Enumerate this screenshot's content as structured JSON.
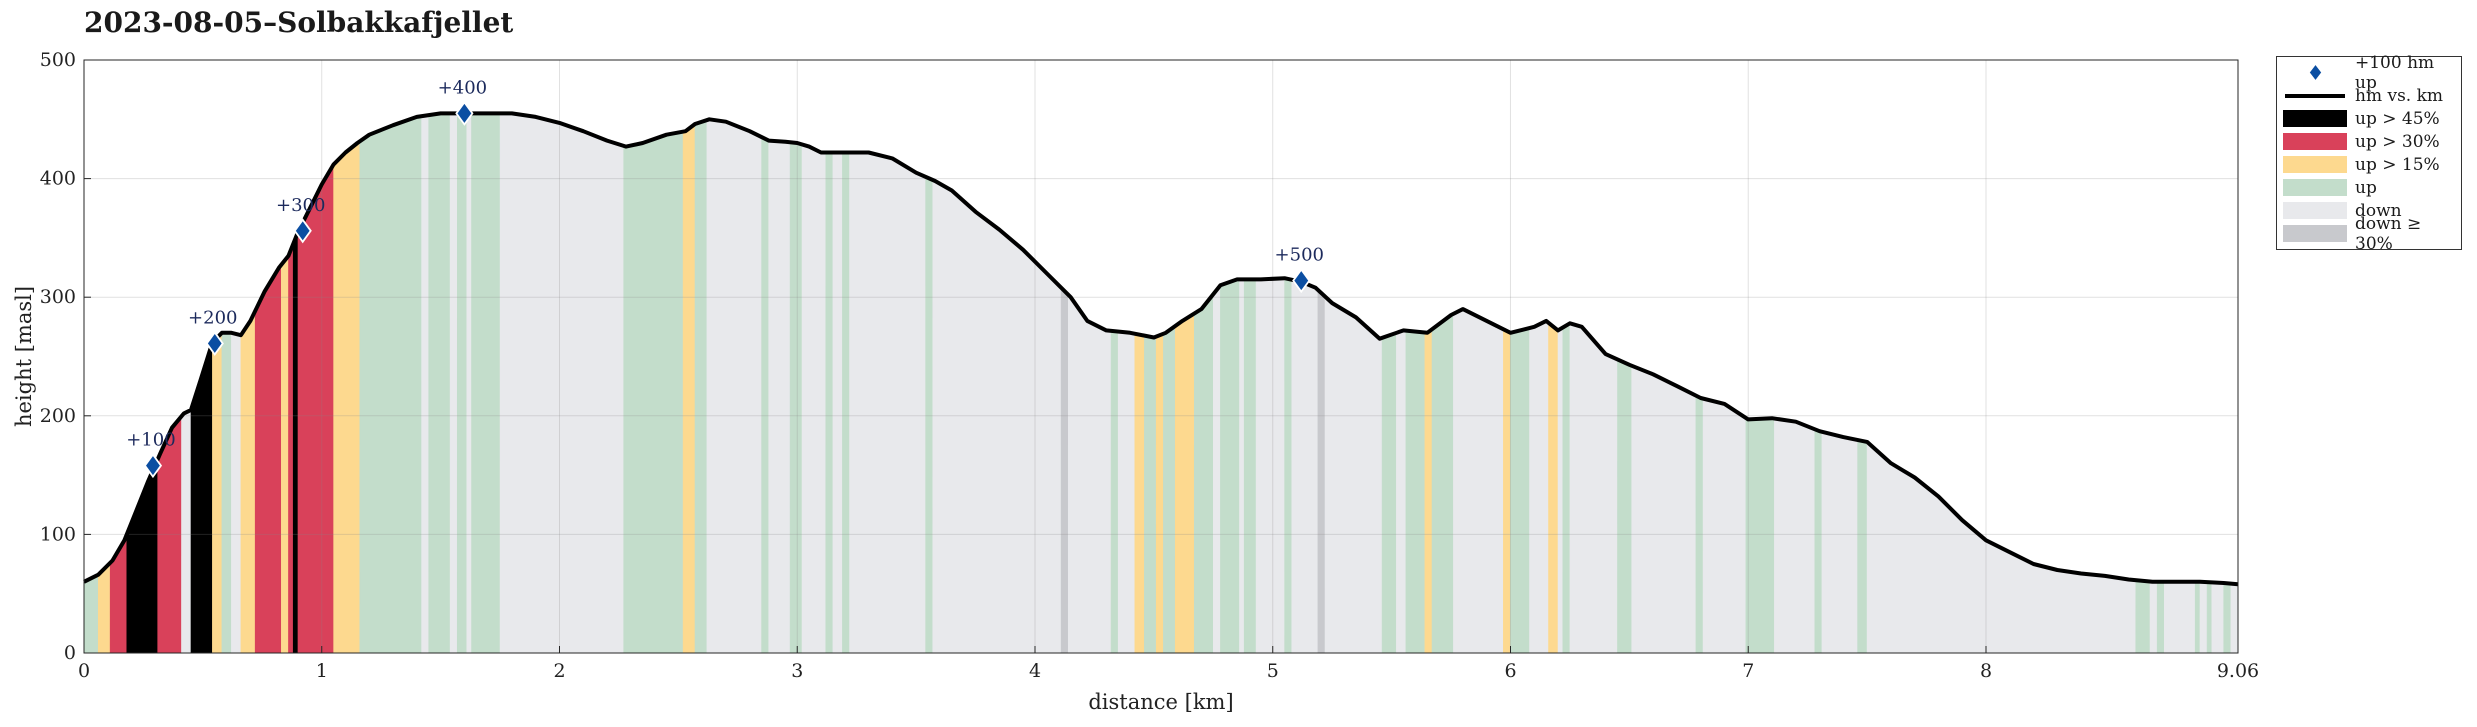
{
  "title": "2023-08-05–Solbakkafjellet",
  "colors": {
    "up_steep": "#000000",
    "up_30": "#d9415a",
    "up_15": "#fdd98f",
    "up": "#c3ddcb",
    "down": "#e8e9ec",
    "down_steep": "#c8c9cd",
    "line": "#000000",
    "marker": "#0b4ea2"
  },
  "legend": [
    {
      "key": "marker",
      "label": "+100 hm up",
      "symbol": "diamond"
    },
    {
      "key": "line",
      "label": "hm vs. km",
      "symbol": "line"
    },
    {
      "key": "up_steep",
      "label": "up > 45%",
      "symbol": "box"
    },
    {
      "key": "up_30",
      "label": "up > 30%",
      "symbol": "box"
    },
    {
      "key": "up_15",
      "label": "up > 15%",
      "symbol": "box"
    },
    {
      "key": "up",
      "label": "up",
      "symbol": "box"
    },
    {
      "key": "down",
      "label": "down",
      "symbol": "box"
    },
    {
      "key": "down_steep",
      "label": "down ≥ 30%",
      "symbol": "box"
    }
  ],
  "chart_data": {
    "type": "area",
    "title": "2023-08-05–Solbakkafjellet",
    "xlabel": "distance [km]",
    "ylabel": "height [masl]",
    "xlim": [
      0,
      9.06
    ],
    "ylim": [
      0,
      500
    ],
    "xticks": [
      "0",
      "1",
      "2",
      "3",
      "4",
      "5",
      "6",
      "7",
      "8",
      "9.06"
    ],
    "xtick_values": [
      0,
      1,
      2,
      3,
      4,
      5,
      6,
      7,
      8,
      9.06
    ],
    "yticks": [
      0,
      100,
      200,
      300,
      400,
      500
    ],
    "grid": true,
    "legend_position": "outside-top-right",
    "profile": [
      [
        0,
        60
      ],
      [
        0.06,
        66
      ],
      [
        0.12,
        78
      ],
      [
        0.17,
        95
      ],
      [
        0.22,
        120
      ],
      [
        0.27,
        145
      ],
      [
        0.32,
        168
      ],
      [
        0.37,
        190
      ],
      [
        0.42,
        202
      ],
      [
        0.45,
        205
      ],
      [
        0.49,
        230
      ],
      [
        0.54,
        262
      ],
      [
        0.58,
        270
      ],
      [
        0.62,
        270
      ],
      [
        0.66,
        268
      ],
      [
        0.7,
        280
      ],
      [
        0.76,
        305
      ],
      [
        0.82,
        325
      ],
      [
        0.86,
        335
      ],
      [
        0.9,
        355
      ],
      [
        0.95,
        375
      ],
      [
        1.0,
        395
      ],
      [
        1.05,
        412
      ],
      [
        1.1,
        422
      ],
      [
        1.15,
        430
      ],
      [
        1.2,
        437
      ],
      [
        1.3,
        445
      ],
      [
        1.4,
        452
      ],
      [
        1.5,
        455
      ],
      [
        1.6,
        455
      ],
      [
        1.7,
        455
      ],
      [
        1.8,
        455
      ],
      [
        1.9,
        452
      ],
      [
        2.0,
        447
      ],
      [
        2.1,
        440
      ],
      [
        2.2,
        432
      ],
      [
        2.28,
        427
      ],
      [
        2.35,
        430
      ],
      [
        2.45,
        437
      ],
      [
        2.53,
        440
      ],
      [
        2.57,
        446
      ],
      [
        2.63,
        450
      ],
      [
        2.7,
        448
      ],
      [
        2.8,
        440
      ],
      [
        2.88,
        432
      ],
      [
        2.95,
        431
      ],
      [
        3.0,
        430
      ],
      [
        3.05,
        427
      ],
      [
        3.1,
        422
      ],
      [
        3.2,
        422
      ],
      [
        3.3,
        422
      ],
      [
        3.4,
        417
      ],
      [
        3.5,
        405
      ],
      [
        3.58,
        398
      ],
      [
        3.65,
        390
      ],
      [
        3.75,
        372
      ],
      [
        3.85,
        357
      ],
      [
        3.95,
        340
      ],
      [
        4.05,
        320
      ],
      [
        4.15,
        300
      ],
      [
        4.22,
        280
      ],
      [
        4.3,
        272
      ],
      [
        4.4,
        270
      ],
      [
        4.5,
        266
      ],
      [
        4.55,
        270
      ],
      [
        4.62,
        280
      ],
      [
        4.7,
        290
      ],
      [
        4.78,
        310
      ],
      [
        4.85,
        315
      ],
      [
        4.95,
        315
      ],
      [
        5.05,
        316
      ],
      [
        5.12,
        313
      ],
      [
        5.18,
        308
      ],
      [
        5.25,
        295
      ],
      [
        5.35,
        283
      ],
      [
        5.45,
        265
      ],
      [
        5.55,
        272
      ],
      [
        5.65,
        270
      ],
      [
        5.75,
        285
      ],
      [
        5.8,
        290
      ],
      [
        5.9,
        280
      ],
      [
        6.0,
        270
      ],
      [
        6.1,
        275
      ],
      [
        6.15,
        280
      ],
      [
        6.2,
        272
      ],
      [
        6.25,
        278
      ],
      [
        6.3,
        275
      ],
      [
        6.4,
        252
      ],
      [
        6.5,
        243
      ],
      [
        6.6,
        235
      ],
      [
        6.7,
        225
      ],
      [
        6.8,
        215
      ],
      [
        6.9,
        210
      ],
      [
        7.0,
        197
      ],
      [
        7.1,
        198
      ],
      [
        7.2,
        195
      ],
      [
        7.3,
        187
      ],
      [
        7.4,
        182
      ],
      [
        7.5,
        178
      ],
      [
        7.6,
        160
      ],
      [
        7.7,
        148
      ],
      [
        7.8,
        132
      ],
      [
        7.9,
        112
      ],
      [
        8.0,
        95
      ],
      [
        8.1,
        85
      ],
      [
        8.2,
        75
      ],
      [
        8.3,
        70
      ],
      [
        8.4,
        67
      ],
      [
        8.5,
        65
      ],
      [
        8.6,
        62
      ],
      [
        8.7,
        60
      ],
      [
        8.8,
        60
      ],
      [
        8.9,
        60
      ],
      [
        9.0,
        59
      ],
      [
        9.06,
        58
      ]
    ],
    "segments": [
      [
        0.0,
        0.06,
        "up"
      ],
      [
        0.06,
        0.11,
        "up_15"
      ],
      [
        0.11,
        0.18,
        "up_30"
      ],
      [
        0.18,
        0.31,
        "up_steep"
      ],
      [
        0.31,
        0.41,
        "up_30"
      ],
      [
        0.41,
        0.45,
        "down"
      ],
      [
        0.45,
        0.54,
        "up_steep"
      ],
      [
        0.54,
        0.58,
        "up_15"
      ],
      [
        0.58,
        0.62,
        "up"
      ],
      [
        0.62,
        0.66,
        "down"
      ],
      [
        0.66,
        0.72,
        "up_15"
      ],
      [
        0.72,
        0.83,
        "up_30"
      ],
      [
        0.83,
        0.86,
        "up_15"
      ],
      [
        0.86,
        0.88,
        "up_30"
      ],
      [
        0.88,
        0.9,
        "up_steep"
      ],
      [
        0.9,
        1.05,
        "up_30"
      ],
      [
        1.05,
        1.16,
        "up_15"
      ],
      [
        1.16,
        1.42,
        "up"
      ],
      [
        1.42,
        1.45,
        "down"
      ],
      [
        1.45,
        1.54,
        "up"
      ],
      [
        1.54,
        1.57,
        "down"
      ],
      [
        1.57,
        1.61,
        "up"
      ],
      [
        1.61,
        1.63,
        "down"
      ],
      [
        1.63,
        1.75,
        "up"
      ],
      [
        1.75,
        2.27,
        "down"
      ],
      [
        2.27,
        2.52,
        "up"
      ],
      [
        2.52,
        2.57,
        "up_15"
      ],
      [
        2.57,
        2.62,
        "up"
      ],
      [
        2.62,
        2.85,
        "down"
      ],
      [
        2.85,
        2.88,
        "up"
      ],
      [
        2.88,
        2.97,
        "down"
      ],
      [
        2.97,
        3.02,
        "up"
      ],
      [
        3.02,
        3.12,
        "down"
      ],
      [
        3.12,
        3.15,
        "up"
      ],
      [
        3.15,
        3.19,
        "down"
      ],
      [
        3.19,
        3.22,
        "up"
      ],
      [
        3.22,
        3.54,
        "down"
      ],
      [
        3.54,
        3.57,
        "up"
      ],
      [
        3.57,
        4.11,
        "down"
      ],
      [
        4.11,
        4.14,
        "down_steep"
      ],
      [
        4.14,
        4.32,
        "down"
      ],
      [
        4.32,
        4.35,
        "up"
      ],
      [
        4.35,
        4.42,
        "down"
      ],
      [
        4.42,
        4.46,
        "up_15"
      ],
      [
        4.46,
        4.51,
        "up"
      ],
      [
        4.51,
        4.54,
        "up_15"
      ],
      [
        4.54,
        4.59,
        "up"
      ],
      [
        4.59,
        4.67,
        "up_15"
      ],
      [
        4.67,
        4.75,
        "up"
      ],
      [
        4.75,
        4.78,
        "down"
      ],
      [
        4.78,
        4.86,
        "up"
      ],
      [
        4.86,
        4.88,
        "down"
      ],
      [
        4.88,
        4.93,
        "up"
      ],
      [
        4.93,
        5.05,
        "down"
      ],
      [
        5.05,
        5.08,
        "up"
      ],
      [
        5.08,
        5.19,
        "down"
      ],
      [
        5.19,
        5.22,
        "down_steep"
      ],
      [
        5.22,
        5.46,
        "down"
      ],
      [
        5.46,
        5.52,
        "up"
      ],
      [
        5.52,
        5.56,
        "down"
      ],
      [
        5.56,
        5.64,
        "up"
      ],
      [
        5.64,
        5.67,
        "up_15"
      ],
      [
        5.67,
        5.76,
        "up"
      ],
      [
        5.76,
        5.97,
        "down"
      ],
      [
        5.97,
        6.0,
        "up_15"
      ],
      [
        6.0,
        6.08,
        "up"
      ],
      [
        6.08,
        6.16,
        "down"
      ],
      [
        6.16,
        6.2,
        "up_15"
      ],
      [
        6.2,
        6.22,
        "down"
      ],
      [
        6.22,
        6.25,
        "up"
      ],
      [
        6.25,
        6.45,
        "down"
      ],
      [
        6.45,
        6.51,
        "up"
      ],
      [
        6.51,
        6.78,
        "down"
      ],
      [
        6.78,
        6.81,
        "up"
      ],
      [
        6.81,
        6.99,
        "down"
      ],
      [
        6.99,
        7.11,
        "up"
      ],
      [
        7.11,
        7.28,
        "down"
      ],
      [
        7.28,
        7.31,
        "up"
      ],
      [
        7.31,
        7.46,
        "down"
      ],
      [
        7.46,
        7.5,
        "up"
      ],
      [
        7.5,
        8.63,
        "down"
      ],
      [
        8.63,
        8.69,
        "up"
      ],
      [
        8.69,
        8.72,
        "down"
      ],
      [
        8.72,
        8.75,
        "up"
      ],
      [
        8.75,
        8.88,
        "down"
      ],
      [
        8.88,
        8.9,
        "up"
      ],
      [
        8.9,
        8.93,
        "down"
      ],
      [
        8.93,
        8.95,
        "up"
      ],
      [
        8.95,
        9.0,
        "down"
      ],
      [
        9.0,
        9.03,
        "up"
      ],
      [
        9.03,
        9.06,
        "down"
      ]
    ],
    "markers": [
      {
        "label": "+100",
        "x": 0.29,
        "y": 158
      },
      {
        "label": "+200",
        "x": 0.55,
        "y": 261
      },
      {
        "label": "+300",
        "x": 0.92,
        "y": 356
      },
      {
        "label": "+400",
        "x": 1.6,
        "y": 455
      },
      {
        "label": "+500",
        "x": 5.12,
        "y": 314
      }
    ]
  }
}
